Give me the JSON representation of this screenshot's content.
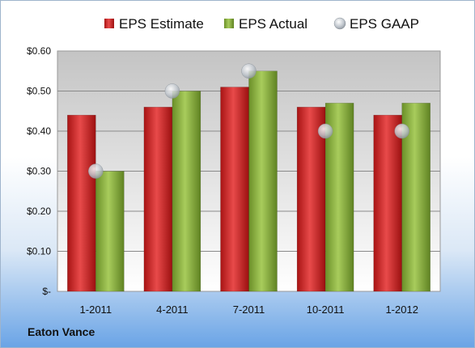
{
  "chart_data": {
    "type": "bar",
    "categories": [
      "1-2011",
      "4-2011",
      "7-2011",
      "10-2011",
      "1-2012"
    ],
    "series": [
      {
        "name": "EPS Estimate",
        "kind": "bar",
        "color": "#d42a2a",
        "values": [
          0.44,
          0.46,
          0.51,
          0.46,
          0.44
        ]
      },
      {
        "name": "EPS Actual",
        "kind": "bar",
        "color": "#8cb440",
        "values": [
          0.3,
          0.5,
          0.55,
          0.47,
          0.47
        ]
      },
      {
        "name": "EPS GAAP",
        "kind": "marker",
        "color": "#b8c0c8",
        "values": [
          0.3,
          0.5,
          0.55,
          0.4,
          0.4
        ]
      }
    ],
    "yticks": [
      "$-",
      "$0.10",
      "$0.20",
      "$0.30",
      "$0.40",
      "$0.50",
      "$0.60"
    ],
    "ylim": [
      0,
      0.6
    ],
    "grid": true,
    "legend": "top"
  },
  "footer": {
    "company": "Eaton Vance"
  }
}
